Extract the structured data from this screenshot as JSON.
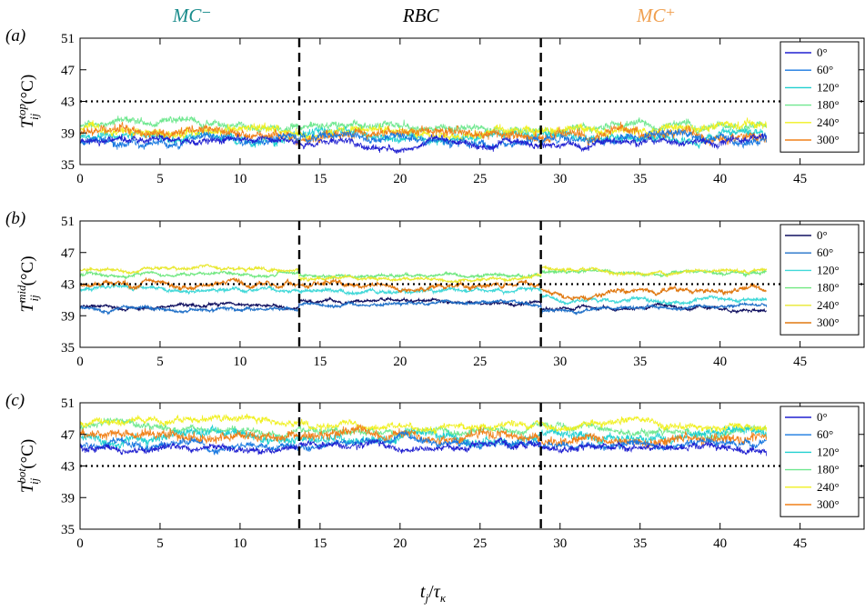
{
  "regimes": [
    {
      "label": "MC⁻",
      "x": 7,
      "color": "#1a8c8c"
    },
    {
      "label": "RBC",
      "x": 21.3,
      "color": "#000000"
    },
    {
      "label": "MC⁺",
      "x": 36,
      "color": "#f0a050"
    }
  ],
  "x_axis": {
    "label_main": "t",
    "label_sub": "j",
    "label_slash": "/",
    "label_tau": "τ",
    "label_tau_sub": "κ",
    "range": [
      0,
      49
    ],
    "ticks": [
      0,
      5,
      10,
      15,
      20,
      25,
      30,
      35,
      40,
      45
    ]
  },
  "y_axis": {
    "range": [
      35,
      51
    ],
    "ticks": [
      35,
      39,
      43,
      47,
      51
    ]
  },
  "regime_boundaries": [
    13.7,
    28.8
  ],
  "reference_line": 43,
  "legend_labels": [
    "0°",
    "60°",
    "120°",
    "180°",
    "240°",
    "300°"
  ],
  "series_colors": {
    "top": [
      "#2020d0",
      "#1878e0",
      "#20d0d0",
      "#70e890",
      "#f0f020",
      "#f08018"
    ],
    "mid": [
      "#101060",
      "#2070c8",
      "#40d8d8",
      "#70e880",
      "#e8e830",
      "#e07810"
    ],
    "bot": [
      "#2020d0",
      "#1878e0",
      "#20d0d0",
      "#70e890",
      "#f0f020",
      "#f08018"
    ]
  },
  "chart_data": [
    {
      "type": "line",
      "panel_label": "(a)",
      "ylabel": {
        "main": "T",
        "sub": "ij",
        "sup": "top",
        "unit": "(°C)"
      },
      "x_end": 42.9,
      "ylim": [
        35,
        51
      ],
      "xlim": [
        0,
        49
      ],
      "legend_position": "right",
      "series": [
        {
          "name": "0°",
          "segments": [
            {
              "from": 0,
              "to": 13.7,
              "mean": 37.8
            },
            {
              "from": 13.7,
              "to": 28.8,
              "mean": 37.8
            },
            {
              "from": 28.8,
              "to": 42.9,
              "mean": 37.8
            }
          ],
          "noise": 0.6
        },
        {
          "name": "60°",
          "segments": [
            {
              "from": 0,
              "to": 13.7,
              "mean": 37.9
            },
            {
              "from": 13.7,
              "to": 28.8,
              "mean": 38.0
            },
            {
              "from": 28.8,
              "to": 42.9,
              "mean": 37.9
            }
          ],
          "noise": 0.7
        },
        {
          "name": "120°",
          "segments": [
            {
              "from": 0,
              "to": 13.7,
              "mean": 38.7
            },
            {
              "from": 13.7,
              "to": 28.8,
              "mean": 38.6
            },
            {
              "from": 28.8,
              "to": 42.9,
              "mean": 38.7
            }
          ],
          "noise": 0.8
        },
        {
          "name": "180°",
          "segments": [
            {
              "from": 0,
              "to": 13.7,
              "mean": 39.9
            },
            {
              "from": 13.7,
              "to": 28.8,
              "mean": 39.7
            },
            {
              "from": 28.8,
              "to": 42.9,
              "mean": 39.6
            }
          ],
          "noise": 0.7
        },
        {
          "name": "240°",
          "segments": [
            {
              "from": 0,
              "to": 13.7,
              "mean": 39.5
            },
            {
              "from": 13.7,
              "to": 28.8,
              "mean": 39.3
            },
            {
              "from": 28.8,
              "to": 42.9,
              "mean": 39.5
            }
          ],
          "noise": 0.8
        },
        {
          "name": "300°",
          "segments": [
            {
              "from": 0,
              "to": 13.7,
              "mean": 39.0
            },
            {
              "from": 13.7,
              "to": 28.8,
              "mean": 38.9
            },
            {
              "from": 28.8,
              "to": 42.9,
              "mean": 38.8
            }
          ],
          "noise": 0.9
        }
      ]
    },
    {
      "type": "line",
      "panel_label": "(b)",
      "ylabel": {
        "main": "T",
        "sub": "ij",
        "sup": "mid",
        "unit": "(°C)"
      },
      "x_end": 42.9,
      "ylim": [
        35,
        51
      ],
      "xlim": [
        0,
        49
      ],
      "legend_position": "right",
      "series": [
        {
          "name": "0°",
          "segments": [
            {
              "from": 0,
              "to": 13.7,
              "mean": 40.2
            },
            {
              "from": 13.7,
              "to": 28.8,
              "mean": 40.9
            },
            {
              "from": 28.8,
              "to": 42.9,
              "mean": 40.0
            }
          ],
          "noise": 0.3
        },
        {
          "name": "60°",
          "segments": [
            {
              "from": 0,
              "to": 13.7,
              "mean": 39.9
            },
            {
              "from": 13.7,
              "to": 28.8,
              "mean": 40.6
            },
            {
              "from": 28.8,
              "to": 42.9,
              "mean": 39.9
            }
          ],
          "noise": 0.3
        },
        {
          "name": "120°",
          "segments": [
            {
              "from": 0,
              "to": 13.7,
              "mean": 42.2
            },
            {
              "from": 13.7,
              "to": 28.8,
              "mean": 42.0
            },
            {
              "from": 28.8,
              "to": 42.9,
              "mean": 41.0
            }
          ],
          "noise": 0.35
        },
        {
          "name": "180°",
          "segments": [
            {
              "from": 0,
              "to": 13.7,
              "mean": 44.1
            },
            {
              "from": 13.7,
              "to": 28.8,
              "mean": 43.9
            },
            {
              "from": 28.8,
              "to": 42.9,
              "mean": 44.6
            }
          ],
          "noise": 0.3
        },
        {
          "name": "240°",
          "segments": [
            {
              "from": 0,
              "to": 13.7,
              "mean": 44.8
            },
            {
              "from": 13.7,
              "to": 28.8,
              "mean": 43.6
            },
            {
              "from": 28.8,
              "to": 42.9,
              "mean": 44.6
            }
          ],
          "noise": 0.3
        },
        {
          "name": "300°",
          "segments": [
            {
              "from": 0,
              "to": 13.7,
              "mean": 43.0
            },
            {
              "from": 13.7,
              "to": 28.8,
              "mean": 42.9
            },
            {
              "from": 28.8,
              "to": 42.9,
              "mean": 42.2
            }
          ],
          "noise": 0.45
        }
      ]
    },
    {
      "type": "line",
      "panel_label": "(c)",
      "ylabel": {
        "main": "T",
        "sub": "ij",
        "sup": "bot",
        "unit": "(°C)"
      },
      "x_end": 42.9,
      "ylim": [
        35,
        51
      ],
      "xlim": [
        0,
        49
      ],
      "legend_position": "right",
      "series": [
        {
          "name": "0°",
          "segments": [
            {
              "from": 0,
              "to": 13.7,
              "mean": 45.3
            },
            {
              "from": 13.7,
              "to": 28.8,
              "mean": 45.6
            },
            {
              "from": 28.8,
              "to": 42.9,
              "mean": 45.3
            }
          ],
          "noise": 0.6
        },
        {
          "name": "60°",
          "segments": [
            {
              "from": 0,
              "to": 13.7,
              "mean": 45.7
            },
            {
              "from": 13.7,
              "to": 28.8,
              "mean": 45.9
            },
            {
              "from": 28.8,
              "to": 42.9,
              "mean": 45.7
            }
          ],
          "noise": 0.6
        },
        {
          "name": "120°",
          "segments": [
            {
              "from": 0,
              "to": 13.7,
              "mean": 46.5
            },
            {
              "from": 13.7,
              "to": 28.8,
              "mean": 46.4
            },
            {
              "from": 28.8,
              "to": 42.9,
              "mean": 46.8
            }
          ],
          "noise": 0.8
        },
        {
          "name": "180°",
          "segments": [
            {
              "from": 0,
              "to": 13.7,
              "mean": 47.8
            },
            {
              "from": 13.7,
              "to": 28.8,
              "mean": 47.6
            },
            {
              "from": 28.8,
              "to": 42.9,
              "mean": 47.6
            }
          ],
          "noise": 0.6
        },
        {
          "name": "240°",
          "segments": [
            {
              "from": 0,
              "to": 13.7,
              "mean": 48.5
            },
            {
              "from": 13.7,
              "to": 28.8,
              "mean": 48.3
            },
            {
              "from": 28.8,
              "to": 42.9,
              "mean": 48.4
            }
          ],
          "noise": 0.6
        },
        {
          "name": "300°",
          "segments": [
            {
              "from": 0,
              "to": 13.7,
              "mean": 47.0
            },
            {
              "from": 13.7,
              "to": 28.8,
              "mean": 46.9
            },
            {
              "from": 28.8,
              "to": 42.9,
              "mean": 46.4
            }
          ],
          "noise": 0.9
        }
      ]
    }
  ]
}
